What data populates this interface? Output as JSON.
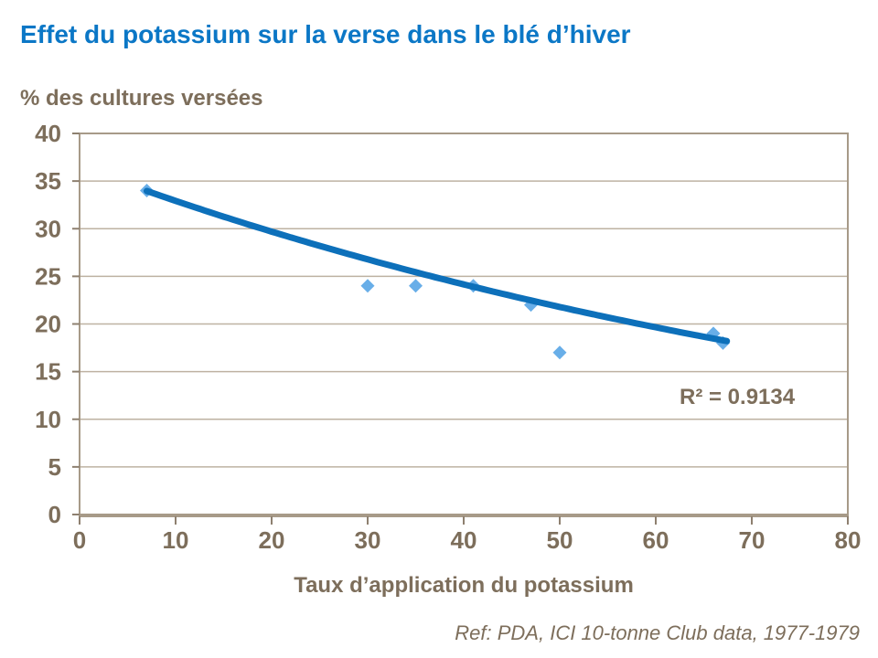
{
  "title": "Effet du potassium sur la verse dans le blé d’hiver",
  "footer": "Ref: PDA, ICI 10-tonne Club data, 1977-1979",
  "chart_data": {
    "type": "scatter",
    "title": "Effet du potassium sur la verse dans le blé d’hiver",
    "xlabel": "Taux d’application du potassium",
    "ylabel": "% des cultures versées",
    "points": [
      {
        "x": 7,
        "y": 34
      },
      {
        "x": 30,
        "y": 24
      },
      {
        "x": 35,
        "y": 24
      },
      {
        "x": 41,
        "y": 24
      },
      {
        "x": 47,
        "y": 22
      },
      {
        "x": 50,
        "y": 17
      },
      {
        "x": 66,
        "y": 19
      },
      {
        "x": 67,
        "y": 18
      }
    ],
    "trendline": {
      "type": "exponential",
      "a": 36.5,
      "k": -0.01032,
      "x_start": 7,
      "x_end": 67.4
    },
    "r2_label": "R² = 0.9134",
    "x_ticks": [
      0,
      10,
      20,
      30,
      40,
      50,
      60,
      70,
      80
    ],
    "y_ticks": [
      0,
      5,
      10,
      15,
      20,
      25,
      30,
      35,
      40
    ],
    "xlim": [
      0,
      80
    ],
    "ylim": [
      0,
      40
    ],
    "grid": "horizontal-only",
    "legend": "none",
    "colors": {
      "title_blue": "#0b77c6",
      "trend_blue": "#0d70ba",
      "marker_blue": "#68aee8",
      "text_brown": "#7d6e5b",
      "grid_tan": "#beb2a2",
      "border_tan": "#a79a88",
      "tick_brown": "#8e8070",
      "background": "#ffffff"
    }
  }
}
